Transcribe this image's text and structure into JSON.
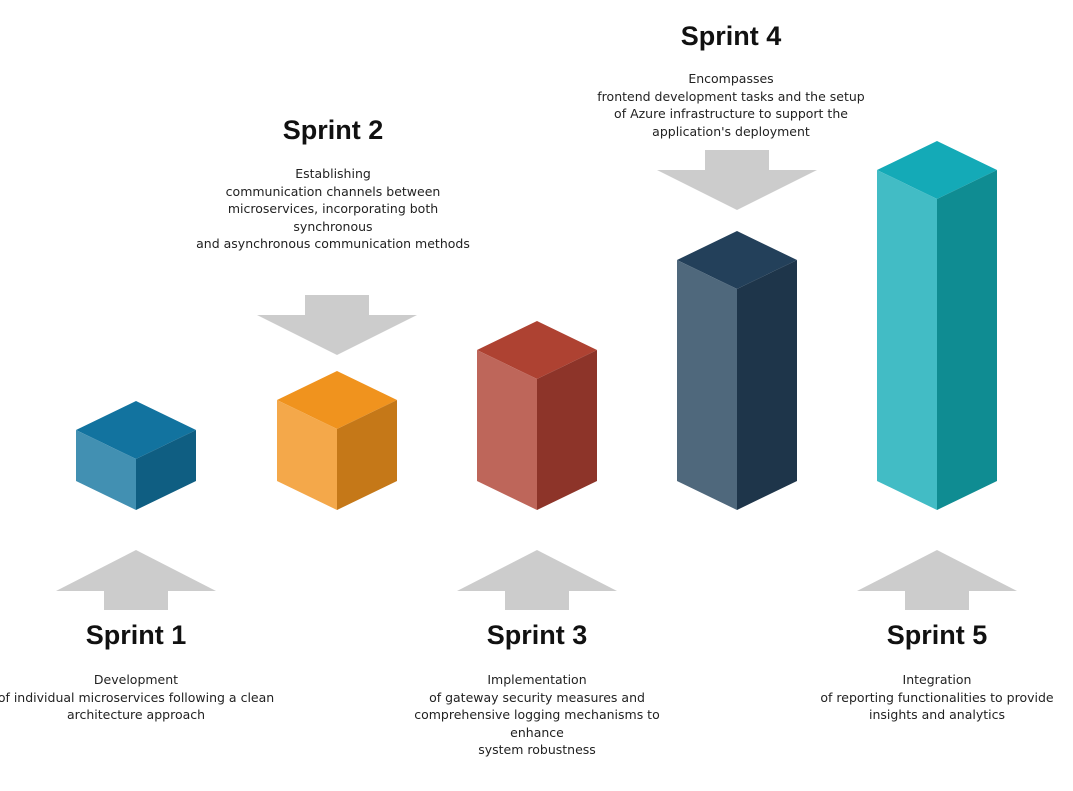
{
  "sprints": [
    {
      "title": "Sprint 1",
      "description_lines": [
        "Development",
        "of individual microservices following a clean",
        "architecture approach"
      ],
      "colors": {
        "top": "#12739F",
        "left": "#4290B2",
        "right": "#0F5E82"
      }
    },
    {
      "title": "Sprint 2",
      "description_lines": [
        "Establishing",
        "communication channels between",
        "microservices, incorporating both",
        "synchronous",
        "and asynchronous communication methods"
      ],
      "colors": {
        "top": "#F0931E",
        "left": "#F4A84A",
        "right": "#C57818"
      }
    },
    {
      "title": "Sprint 3",
      "description_lines": [
        "Implementation",
        "of gateway security measures and",
        "comprehensive logging mechanisms to",
        "enhance",
        "system robustness"
      ],
      "colors": {
        "top": "#AE4232",
        "left": "#BE665A",
        "right": "#8D3429"
      }
    },
    {
      "title": "Sprint 4",
      "description_lines": [
        "Encompasses",
        "frontend development tasks and the setup",
        "of Azure infrastructure to support the",
        "application's deployment"
      ],
      "colors": {
        "top": "#23405A",
        "left": "#4F687C",
        "right": "#1E354A"
      }
    },
    {
      "title": "Sprint 5",
      "description_lines": [
        "Integration",
        "of reporting functionalities to provide",
        "insights and analytics"
      ],
      "colors": {
        "top": "#14AAB7",
        "left": "#42BCC5",
        "right": "#0F8C92"
      }
    }
  ],
  "arrow_color": "#CCCCCC"
}
